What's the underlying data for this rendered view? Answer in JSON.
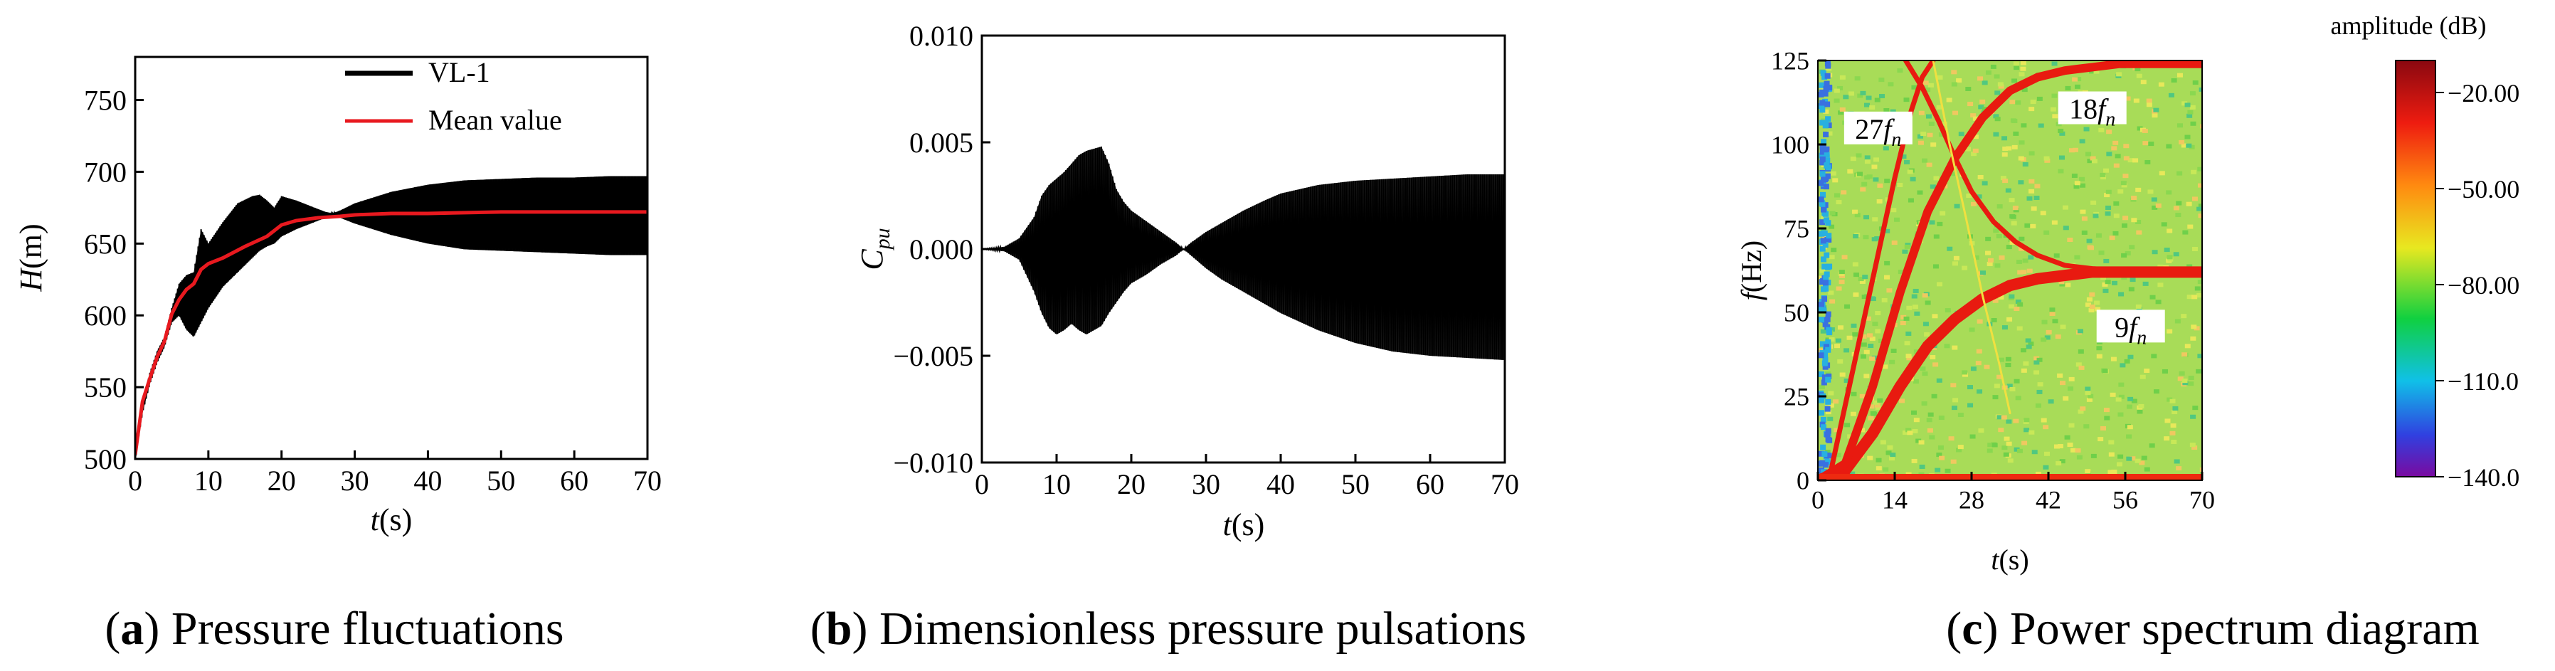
{
  "chart_data": [
    {
      "type": "line",
      "panel_caption": {
        "letter": "a",
        "prefix": "(",
        "suffix": ") Pressure fluctuations"
      },
      "xlabel": {
        "var": "t",
        "unit": "(s)"
      },
      "ylabel": {
        "var": "H",
        "unit": "(m)"
      },
      "xlim": [
        0,
        70
      ],
      "ylim": [
        500,
        780
      ],
      "xticks": [
        "0",
        "10",
        "20",
        "30",
        "40",
        "50",
        "60",
        "70"
      ],
      "yticks": [
        "500",
        "550",
        "600",
        "650",
        "700",
        "750"
      ],
      "legend": {
        "position": "top-right",
        "entries": [
          "VL-1",
          "Mean value"
        ]
      },
      "series": [
        {
          "name": "VL-1",
          "color": "#000000",
          "kind": "oscillating-band",
          "x": [
            0,
            1,
            2,
            3,
            4,
            5,
            6,
            7,
            8,
            9,
            10,
            12,
            14,
            16,
            17,
            18,
            19,
            20,
            22,
            24,
            26,
            27,
            28,
            30,
            35,
            40,
            45,
            50,
            55,
            60,
            65,
            70
          ],
          "upper": [
            500,
            540,
            560,
            575,
            585,
            605,
            622,
            628,
            630,
            660,
            650,
            665,
            678,
            683,
            684,
            680,
            675,
            683,
            680,
            676,
            672,
            671,
            673,
            678,
            686,
            691,
            694,
            695,
            696,
            696,
            697,
            697
          ],
          "lower": [
            500,
            532,
            552,
            567,
            578,
            595,
            600,
            590,
            585,
            595,
            605,
            620,
            630,
            640,
            645,
            648,
            650,
            655,
            660,
            664,
            668,
            670,
            668,
            664,
            656,
            650,
            646,
            645,
            644,
            643,
            642,
            642
          ]
        },
        {
          "name": "Mean value",
          "color": "#e8191f",
          "x": [
            0,
            1,
            2,
            3,
            4,
            5,
            6,
            7,
            8,
            9,
            10,
            12,
            15,
            18,
            20,
            22,
            25,
            28,
            30,
            35,
            40,
            50,
            60,
            70
          ],
          "y": [
            503,
            540,
            556,
            571,
            582,
            601,
            611,
            618,
            622,
            632,
            636,
            640,
            648,
            655,
            663,
            666,
            668,
            669,
            670,
            671,
            671,
            672,
            672,
            672
          ]
        }
      ]
    },
    {
      "type": "line",
      "panel_caption": {
        "letter": "b",
        "prefix": "(",
        "suffix": ") Dimensionless pressure pulsations"
      },
      "xlabel": {
        "var": "t",
        "unit": "(s)"
      },
      "ylabel": {
        "var": "C",
        "sub": "pu"
      },
      "xlim": [
        0,
        70
      ],
      "ylim": [
        -0.01,
        0.01
      ],
      "xticks": [
        "0",
        "10",
        "20",
        "30",
        "40",
        "50",
        "60",
        "70"
      ],
      "yticks": [
        "−0.010",
        "−0.005",
        "0.000",
        "0.005",
        "0.010"
      ],
      "series": [
        {
          "name": "Cpu",
          "color": "#000000",
          "kind": "oscillating-band",
          "x": [
            0,
            3,
            5,
            7,
            8,
            9,
            10,
            11,
            12,
            13,
            14,
            15,
            16,
            17,
            18,
            19,
            20,
            22,
            24,
            26,
            27,
            28,
            30,
            32,
            35,
            38,
            40,
            45,
            50,
            55,
            60,
            65,
            70
          ],
          "upper": [
            0,
            0.0001,
            0.0005,
            0.0015,
            0.0025,
            0.003,
            0.0033,
            0.0036,
            0.004,
            0.0044,
            0.0046,
            0.0047,
            0.0048,
            0.004,
            0.0028,
            0.0022,
            0.0018,
            0.0013,
            0.0008,
            0.0003,
            0.0,
            0.0003,
            0.0008,
            0.0012,
            0.0018,
            0.0023,
            0.0026,
            0.003,
            0.0032,
            0.0033,
            0.0034,
            0.0035,
            0.0035
          ],
          "lower": [
            0,
            -0.0001,
            -0.0005,
            -0.002,
            -0.003,
            -0.0037,
            -0.004,
            -0.0038,
            -0.0035,
            -0.0038,
            -0.004,
            -0.0038,
            -0.0036,
            -0.003,
            -0.0025,
            -0.002,
            -0.0016,
            -0.0012,
            -0.0007,
            -0.0003,
            0.0,
            -0.0003,
            -0.0009,
            -0.0014,
            -0.002,
            -0.0026,
            -0.003,
            -0.0038,
            -0.0044,
            -0.0048,
            -0.005,
            -0.0051,
            -0.0052
          ]
        }
      ]
    },
    {
      "type": "heatmap",
      "panel_caption": {
        "letter": "c",
        "prefix": "(",
        "suffix": ") Power spectrum diagram"
      },
      "xlabel": {
        "var": "t",
        "unit": "(s)"
      },
      "ylabel": {
        "var": "f",
        "unit": "(Hz)"
      },
      "xlim": [
        0,
        70
      ],
      "ylim": [
        0,
        125
      ],
      "xticks": [
        "0",
        "14",
        "28",
        "42",
        "56",
        "70"
      ],
      "yticks": [
        "0",
        "25",
        "50",
        "75",
        "100",
        "125"
      ],
      "colorbar": {
        "title": "amplitude (dB)",
        "range": [
          -140,
          -10
        ],
        "ticks": [
          "−20.00",
          "−50.00",
          "−80.00",
          "−110.0",
          "−140.0"
        ]
      },
      "annotations": [
        {
          "coef": "27",
          "var": "f",
          "sub": "n",
          "t": 11,
          "f": 103
        },
        {
          "coef": "18",
          "var": "f",
          "sub": "n",
          "t": 50,
          "f": 109
        },
        {
          "coef": "9",
          "var": "f",
          "sub": "n",
          "t": 57,
          "f": 44
        }
      ],
      "ridges": [
        {
          "name": "9fn",
          "t": [
            0,
            5,
            10,
            15,
            20,
            25,
            30,
            35,
            40,
            45,
            50,
            55,
            60,
            70
          ],
          "f": [
            0,
            3,
            14,
            28,
            40,
            48,
            54,
            58,
            60,
            61,
            62,
            62,
            62,
            62
          ]
        },
        {
          "name": "18fn",
          "t": [
            0,
            5,
            10,
            15,
            20,
            25,
            30,
            35,
            40,
            45,
            50,
            55,
            60,
            70
          ],
          "f": [
            0,
            5,
            28,
            56,
            80,
            96,
            108,
            116,
            120,
            122,
            123,
            124,
            124,
            124
          ]
        },
        {
          "name": "27fn",
          "t": [
            2,
            6,
            10,
            14,
            17,
            19,
            21
          ],
          "f": [
            0,
            30,
            60,
            90,
            110,
            120,
            125
          ]
        },
        {
          "name": "decay",
          "t": [
            16,
            19,
            22,
            25,
            28,
            32,
            36,
            40,
            45,
            50,
            60,
            70
          ],
          "f": [
            125,
            117,
            107,
            96,
            86,
            77,
            71,
            67,
            64,
            63,
            62,
            62
          ]
        },
        {
          "name": "faint",
          "t": [
            21,
            24,
            27,
            30,
            33,
            35
          ],
          "f": [
            125,
            100,
            78,
            55,
            35,
            20
          ]
        }
      ]
    }
  ]
}
